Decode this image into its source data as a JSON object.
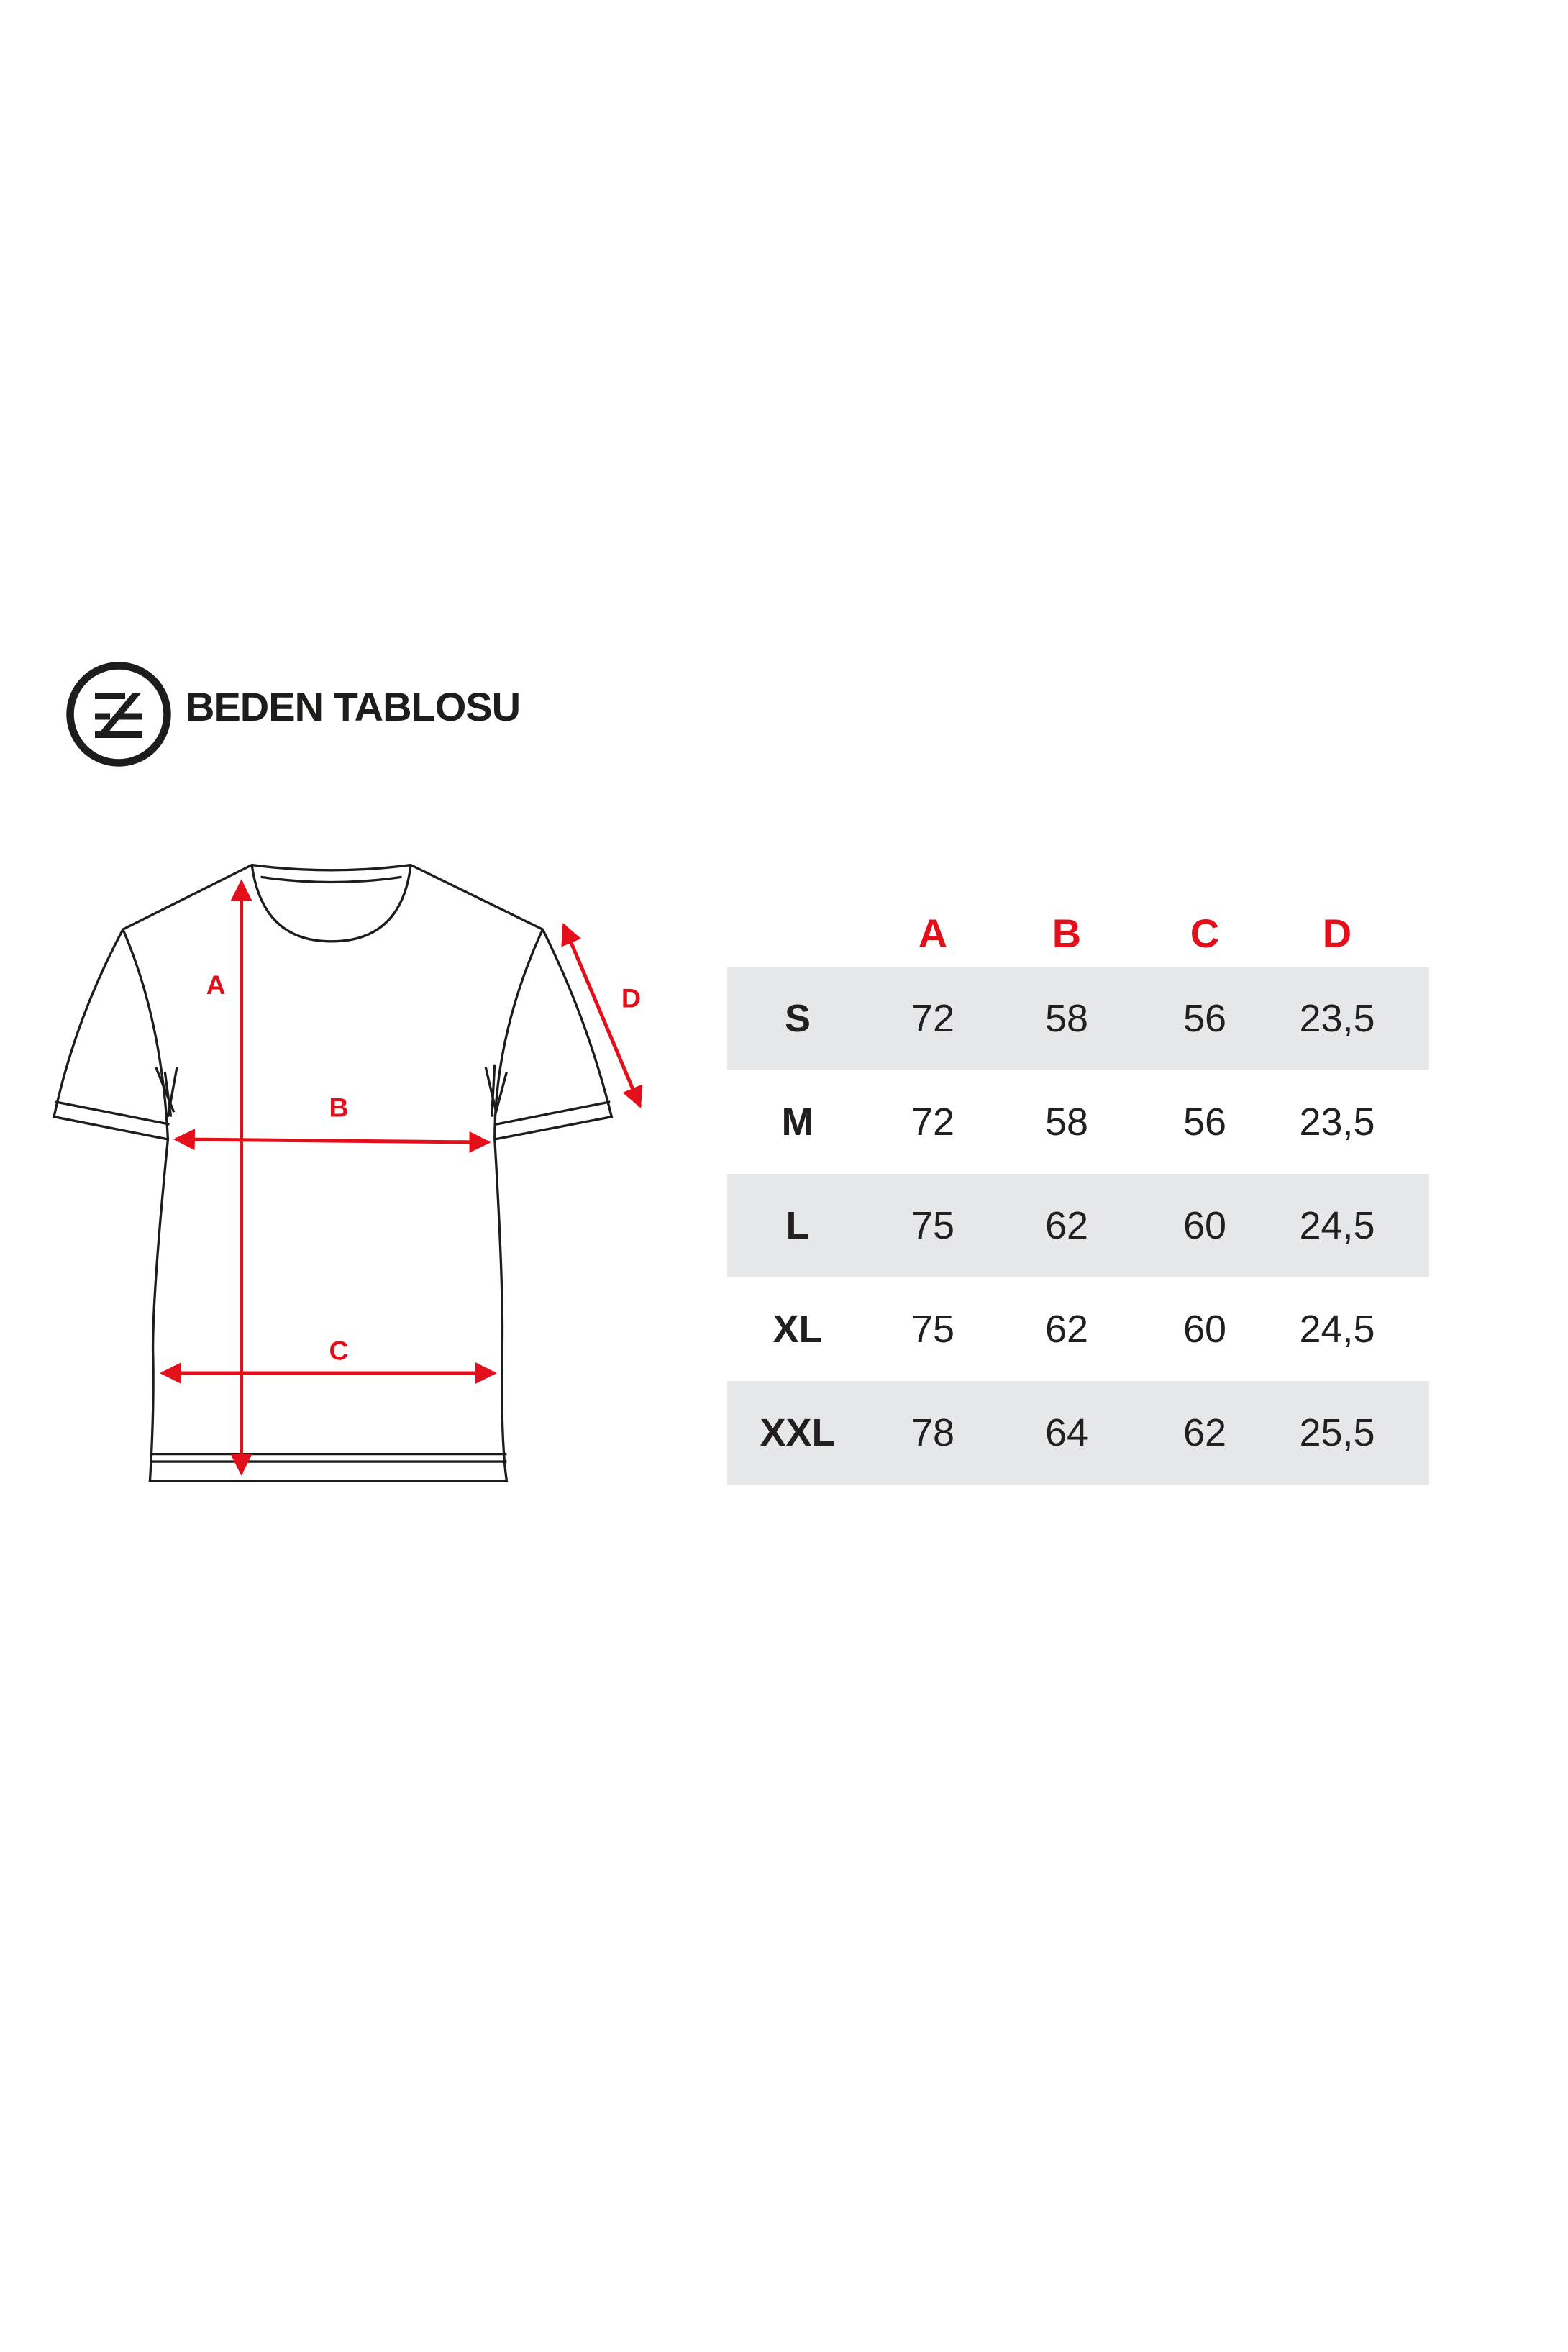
{
  "header": {
    "title": "BEDEN TABLOSU",
    "logo_icon": "ze-circle-logo-icon"
  },
  "colors": {
    "accent": "#e3101b",
    "row_shade": "#e6e7e8",
    "text": "#231f20"
  },
  "diagram": {
    "labels": {
      "a": "A",
      "b": "B",
      "c": "C",
      "d": "D"
    }
  },
  "table": {
    "columns": [
      "",
      "A",
      "B",
      "C",
      "D"
    ],
    "rows": [
      {
        "size": "S",
        "values": [
          "72",
          "58",
          "56",
          "23,5"
        ]
      },
      {
        "size": "M",
        "values": [
          "72",
          "58",
          "56",
          "23,5"
        ]
      },
      {
        "size": "L",
        "values": [
          "75",
          "62",
          "60",
          "24,5"
        ]
      },
      {
        "size": "XL",
        "values": [
          "75",
          "62",
          "60",
          "24,5"
        ]
      },
      {
        "size": "XXL",
        "values": [
          "78",
          "64",
          "62",
          "25,5"
        ]
      }
    ]
  }
}
